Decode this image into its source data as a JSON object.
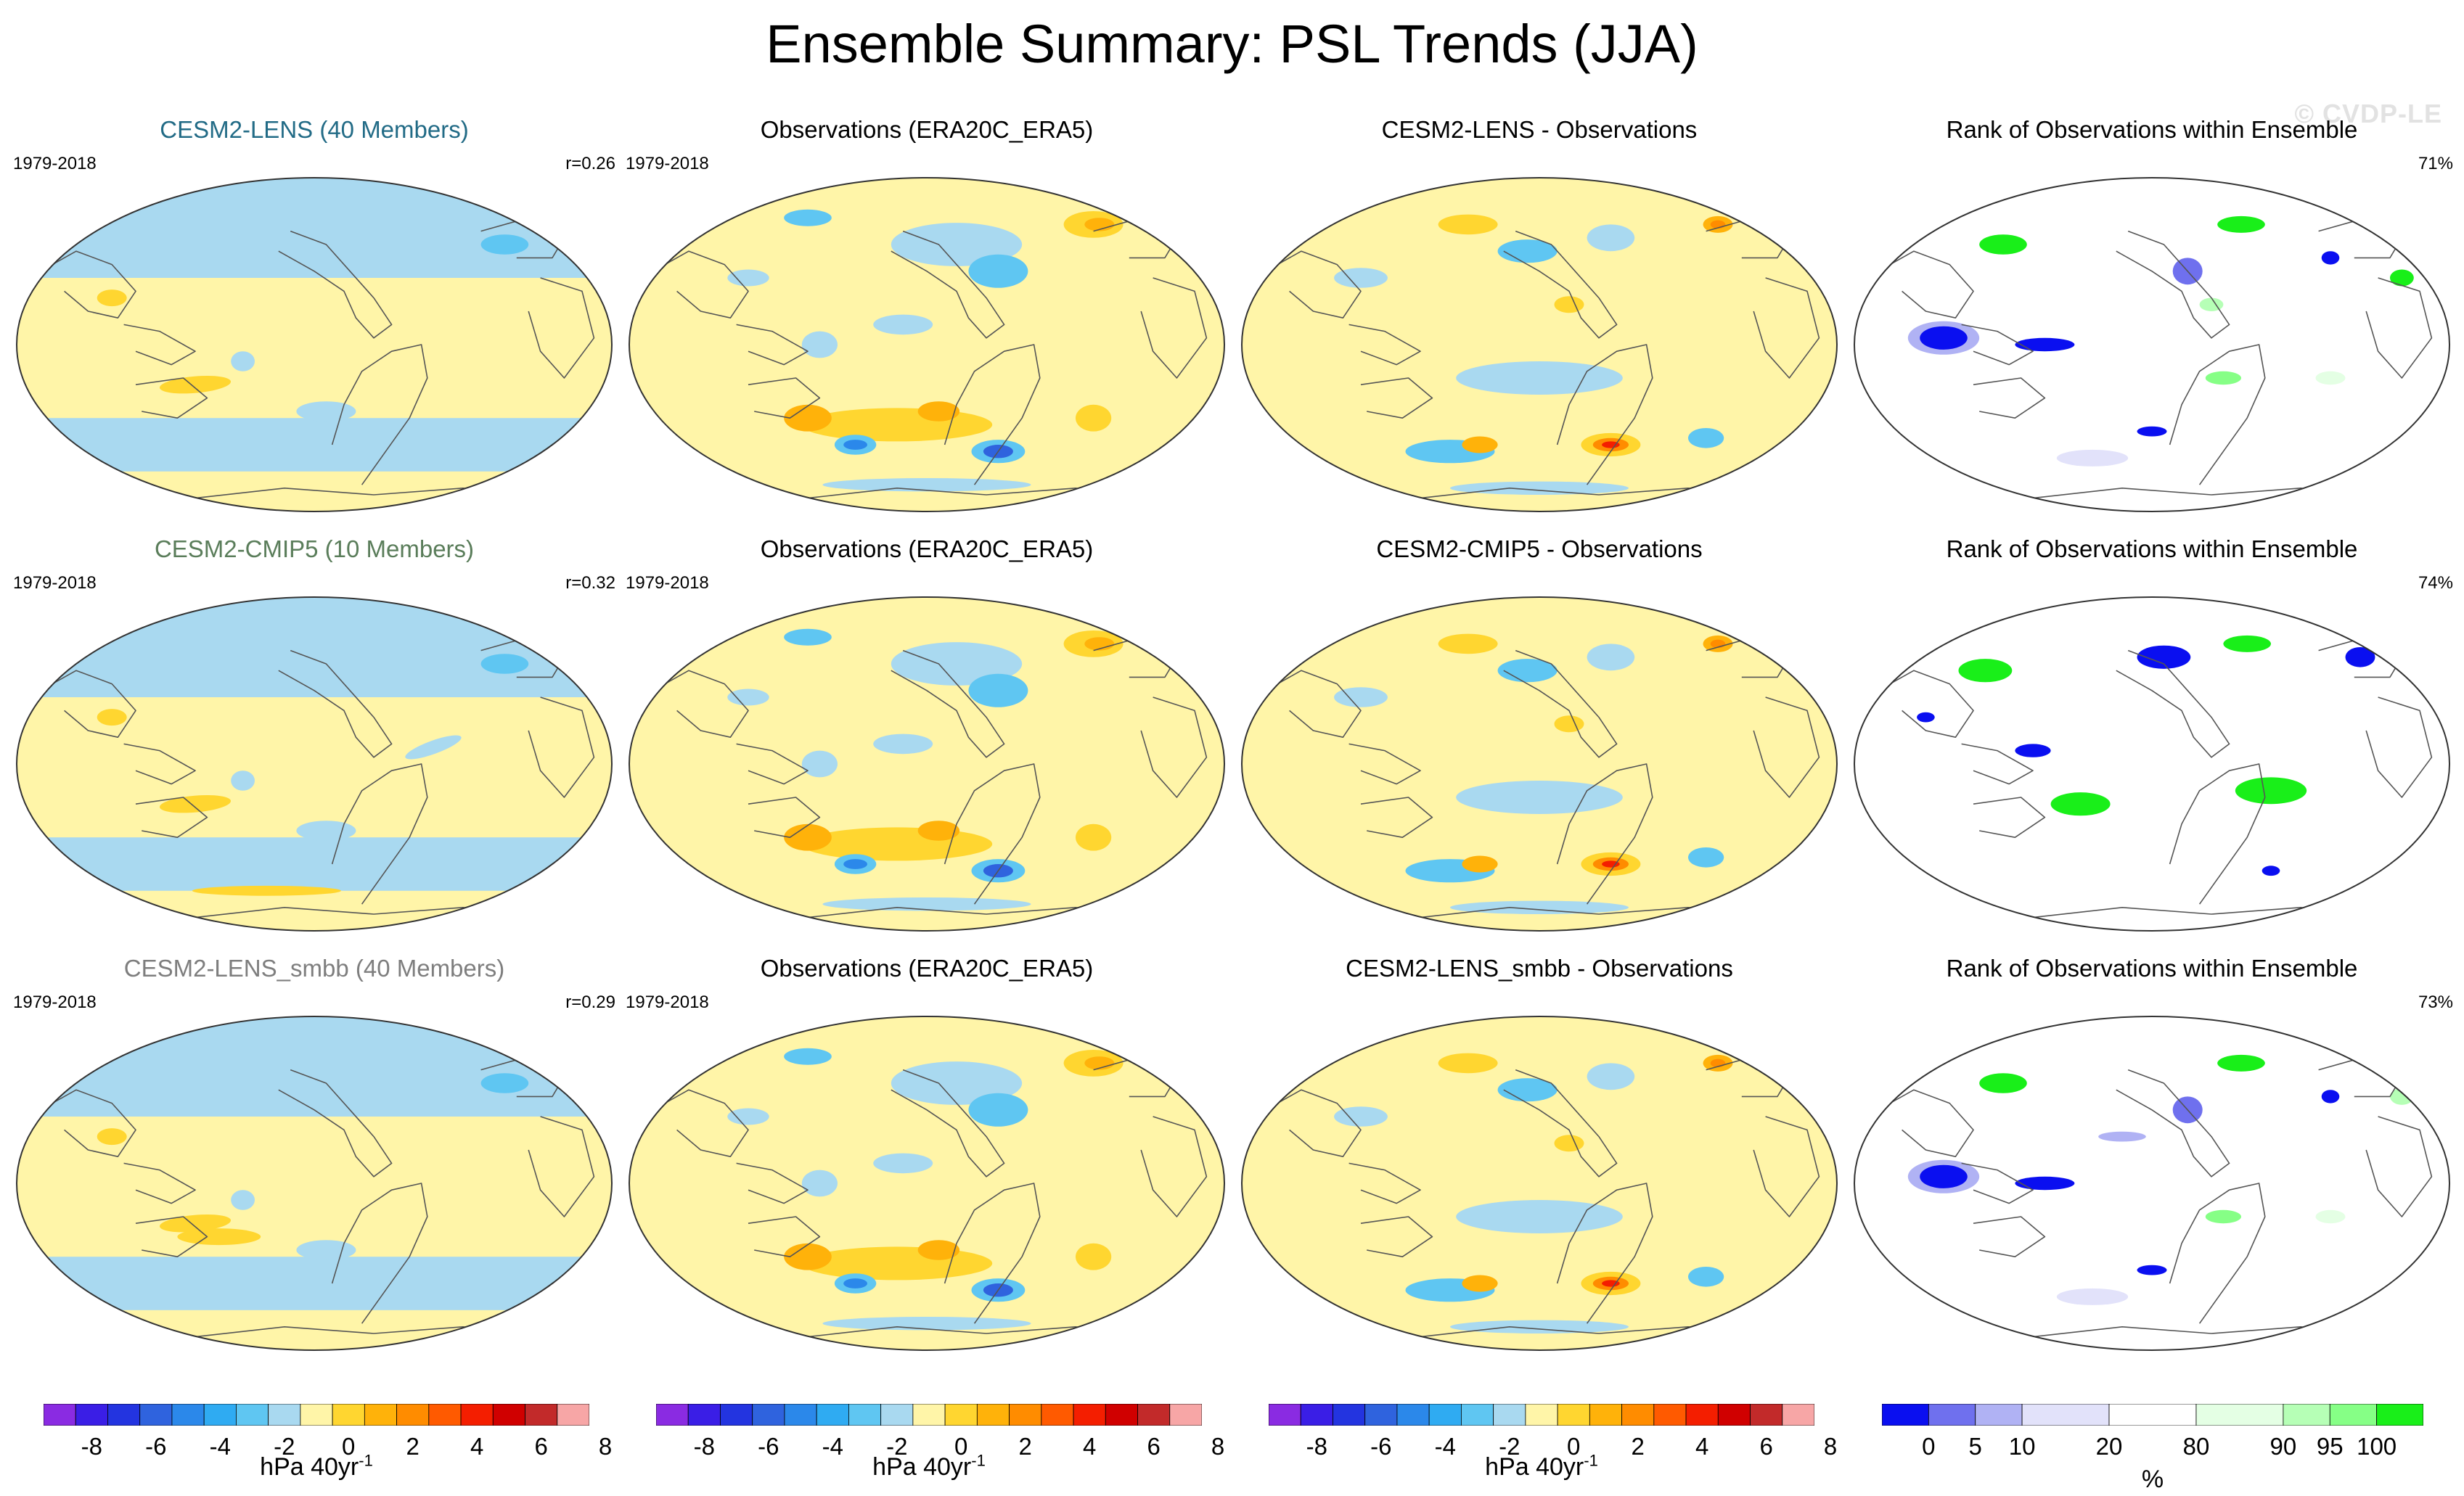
{
  "title": "Ensemble Summary: PSL Trends (JJA)",
  "watermark": "© CVDP-LE",
  "colors": {
    "trend_scale": [
      "#8a2be2",
      "#3a1ee6",
      "#2334e0",
      "#2f63de",
      "#2b88ea",
      "#2fabf2",
      "#5fc6f2",
      "#a9d9f0",
      "#fff5a8",
      "#ffd630",
      "#ffb20a",
      "#ff8c00",
      "#ff5a00",
      "#f41e00",
      "#d00000",
      "#c22a2a",
      "#f7a6a6"
    ],
    "rank_scale": [
      "#0a0ff0",
      "#6f70ee",
      "#b0b2f4",
      "#e2e2fa",
      "#ffffff",
      "#e4ffe4",
      "#b6ffb6",
      "#86ff86",
      "#19ef19"
    ],
    "title_lens": "#226b86",
    "title_cmip5": "#5a7d5a",
    "title_smbb": "#7e7e7e"
  },
  "rows": [
    {
      "model_title": "CESM2-LENS (40 Members)",
      "model_period": "1979-2018",
      "pattern_corr": "r=0.26",
      "obs_title": "Observations (ERA20C_ERA5)",
      "obs_period": "1979-2018",
      "diff_title": "CESM2-LENS - Observations",
      "rank_title": "Rank of Observations within Ensemble",
      "rank_percent": "71%"
    },
    {
      "model_title": "CESM2-CMIP5 (10 Members)",
      "model_period": "1979-2018",
      "pattern_corr": "r=0.32",
      "obs_title": "Observations (ERA20C_ERA5)",
      "obs_period": "1979-2018",
      "diff_title": "CESM2-CMIP5 - Observations",
      "rank_title": "Rank of Observations within Ensemble",
      "rank_percent": "74%"
    },
    {
      "model_title": "CESM2-LENS_smbb (40 Members)",
      "model_period": "1979-2018",
      "pattern_corr": "r=0.29",
      "obs_title": "Observations (ERA20C_ERA5)",
      "obs_period": "1979-2018",
      "diff_title": "CESM2-LENS_smbb - Observations",
      "rank_title": "Rank of Observations within Ensemble",
      "rank_percent": "73%"
    }
  ],
  "colorbars": {
    "trend_ticks": [
      "-8",
      "-6",
      "-4",
      "-2",
      "0",
      "2",
      "4",
      "6",
      "8"
    ],
    "trend_label": "hPa 40yr",
    "trend_label_exp": "-1",
    "rank_ticks": [
      "0",
      "5",
      "10",
      "20",
      "80",
      "90",
      "95",
      "100"
    ],
    "rank_label": "%"
  },
  "chart_data": {
    "type": "heatmap",
    "title": "Ensemble Summary: PSL Trends (JJA)",
    "variable": "PSL",
    "season": "JJA",
    "period": "1979-2018",
    "units": "hPa 40yr-1",
    "trend_levels": [
      -8,
      -7,
      -6,
      -5,
      -4,
      -3,
      -2,
      -1,
      0,
      1,
      2,
      3,
      4,
      5,
      6,
      7,
      8
    ],
    "rank_levels": [
      0,
      5,
      10,
      20,
      80,
      90,
      95,
      100
    ],
    "panels": [
      {
        "row": 1,
        "col": 1,
        "name": "CESM2-LENS (40 Members)",
        "pattern_corr": 0.26
      },
      {
        "row": 1,
        "col": 2,
        "name": "Observations (ERA20C_ERA5)"
      },
      {
        "row": 1,
        "col": 3,
        "name": "CESM2-LENS - Observations"
      },
      {
        "row": 1,
        "col": 4,
        "name": "Rank of Observations within Ensemble",
        "percent": 71
      },
      {
        "row": 2,
        "col": 1,
        "name": "CESM2-CMIP5 (10 Members)",
        "pattern_corr": 0.32
      },
      {
        "row": 2,
        "col": 2,
        "name": "Observations (ERA20C_ERA5)"
      },
      {
        "row": 2,
        "col": 3,
        "name": "CESM2-CMIP5 - Observations"
      },
      {
        "row": 2,
        "col": 4,
        "name": "Rank of Observations within Ensemble",
        "percent": 74
      },
      {
        "row": 3,
        "col": 1,
        "name": "CESM2-LENS_smbb (40 Members)",
        "pattern_corr": 0.29
      },
      {
        "row": 3,
        "col": 2,
        "name": "Observations (ERA20C_ERA5)"
      },
      {
        "row": 3,
        "col": 3,
        "name": "CESM2-LENS_smbb - Observations"
      },
      {
        "row": 3,
        "col": 4,
        "name": "Rank of Observations within Ensemble",
        "percent": 73
      }
    ]
  }
}
